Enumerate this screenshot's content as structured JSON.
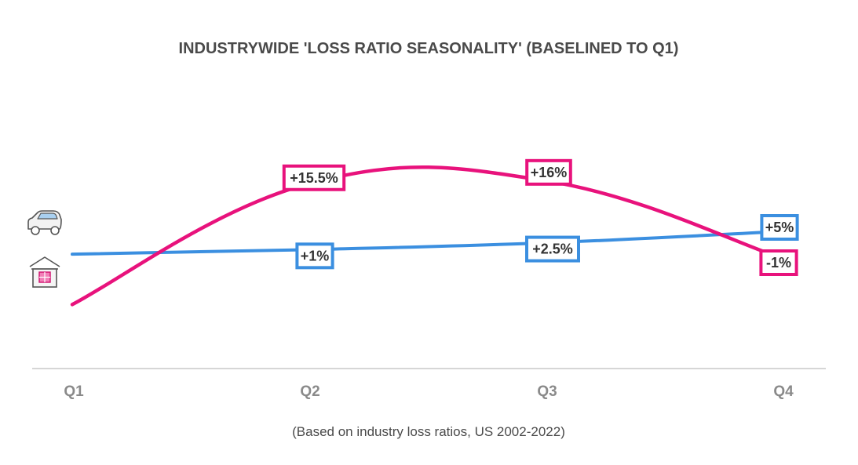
{
  "chart_data": {
    "type": "line",
    "title": "INDUSTRYWIDE 'LOSS RATIO SEASONALITY' (BASELINED TO Q1)",
    "subtitle": "(Based on industry loss ratios, US 2002-2022)",
    "categories": [
      "Q1",
      "Q2",
      "Q3",
      "Q4"
    ],
    "xlabel": "",
    "ylabel": "",
    "ylim": [
      -25,
      35
    ],
    "grid": false,
    "series": [
      {
        "name": "Auto",
        "icon": "car-icon",
        "color": "#3b8fe0",
        "values": [
          0,
          1,
          2.5,
          5
        ],
        "labels": [
          "",
          "+1%",
          "+2.5%",
          "+5%"
        ]
      },
      {
        "name": "Home",
        "icon": "house-icon",
        "color": "#e8127c",
        "values": [
          -11,
          15.5,
          16,
          -1
        ],
        "labels": [
          "",
          "+15.5%",
          "+16%",
          "-1%"
        ]
      }
    ]
  }
}
